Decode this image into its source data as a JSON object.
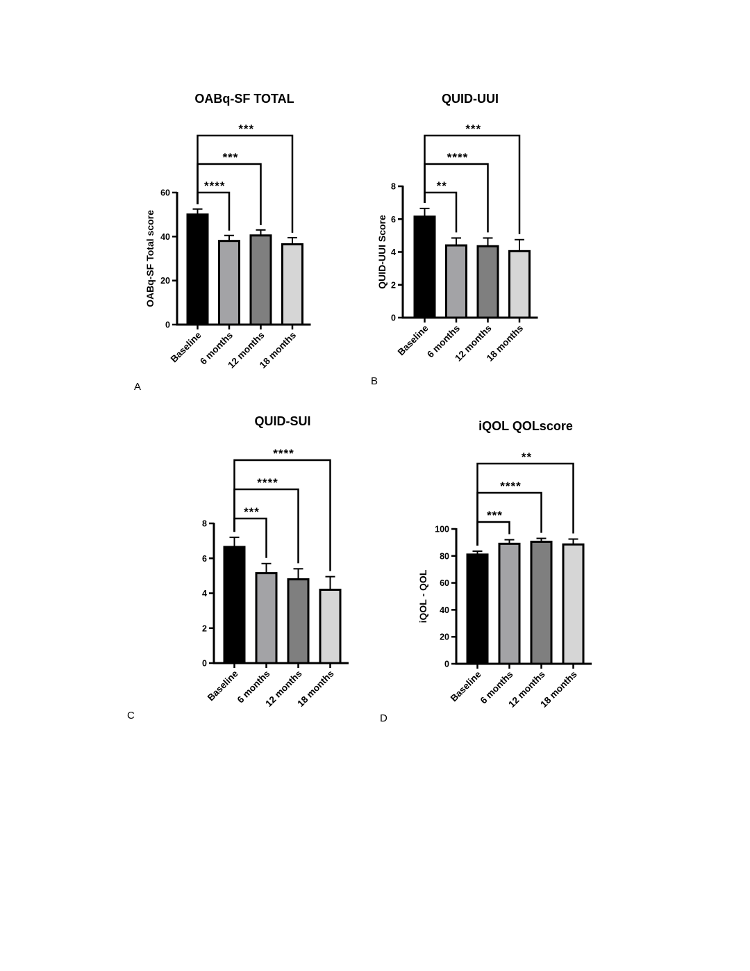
{
  "colors": {
    "baseline": "#000000",
    "6 months": "#a3a3a6",
    "12 months": "#7f7f7f",
    "18 months": "#d6d6d6",
    "axis": "#000000"
  },
  "chart_data": [
    {
      "panel_letter": "A",
      "type": "bar",
      "title": "OABq-SF TOTAL",
      "xlabel": "",
      "ylabel": "OABq-SF Total score",
      "categories": [
        "Baseline",
        "6 months",
        "12 months",
        "18 months"
      ],
      "values": [
        50,
        38,
        40.5,
        36.5
      ],
      "error": [
        2.5,
        2.5,
        2.5,
        3
      ],
      "ylim": [
        0,
        60
      ],
      "yticks": [
        0,
        20,
        40,
        60
      ],
      "significance": [
        {
          "from": 0,
          "to": 1,
          "label": "****"
        },
        {
          "from": 0,
          "to": 2,
          "label": "***"
        },
        {
          "from": 0,
          "to": 3,
          "label": "***"
        }
      ]
    },
    {
      "panel_letter": "B",
      "type": "bar",
      "title": "QUID-UUI",
      "xlabel": "",
      "ylabel": "QUID-UUI Score",
      "categories": [
        "Baseline",
        "6 months",
        "12 months",
        "18 months"
      ],
      "values": [
        6.15,
        4.4,
        4.35,
        4.05
      ],
      "error": [
        0.5,
        0.45,
        0.5,
        0.7
      ],
      "ylim": [
        0,
        8
      ],
      "yticks": [
        0,
        2,
        4,
        6,
        8
      ],
      "significance": [
        {
          "from": 0,
          "to": 1,
          "label": "**"
        },
        {
          "from": 0,
          "to": 2,
          "label": "****"
        },
        {
          "from": 0,
          "to": 3,
          "label": "***"
        }
      ]
    },
    {
      "panel_letter": "C",
      "type": "bar",
      "title": "QUID-SUI",
      "xlabel": "",
      "ylabel": "",
      "categories": [
        "Baseline",
        "6 months",
        "12 months",
        "18 months"
      ],
      "values": [
        6.65,
        5.15,
        4.8,
        4.2
      ],
      "error": [
        0.55,
        0.55,
        0.6,
        0.75
      ],
      "ylim": [
        0,
        8
      ],
      "yticks": [
        0,
        2,
        4,
        6,
        8
      ],
      "significance": [
        {
          "from": 0,
          "to": 1,
          "label": "***"
        },
        {
          "from": 0,
          "to": 2,
          "label": "****"
        },
        {
          "from": 0,
          "to": 3,
          "label": "****"
        }
      ]
    },
    {
      "panel_letter": "D",
      "type": "bar",
      "title": "iQOL QOLscore",
      "xlabel": "",
      "ylabel": "iQOL - QOL",
      "categories": [
        "Baseline",
        "6 months",
        "12 months",
        "18 months"
      ],
      "values": [
        81,
        89,
        90.5,
        88.5
      ],
      "error": [
        2.5,
        3,
        2.5,
        4
      ],
      "ylim": [
        0,
        100
      ],
      "yticks": [
        0,
        20,
        40,
        60,
        80,
        100
      ],
      "significance": [
        {
          "from": 0,
          "to": 1,
          "label": "***"
        },
        {
          "from": 0,
          "to": 2,
          "label": "****"
        },
        {
          "from": 0,
          "to": 3,
          "label": "**"
        }
      ]
    }
  ]
}
